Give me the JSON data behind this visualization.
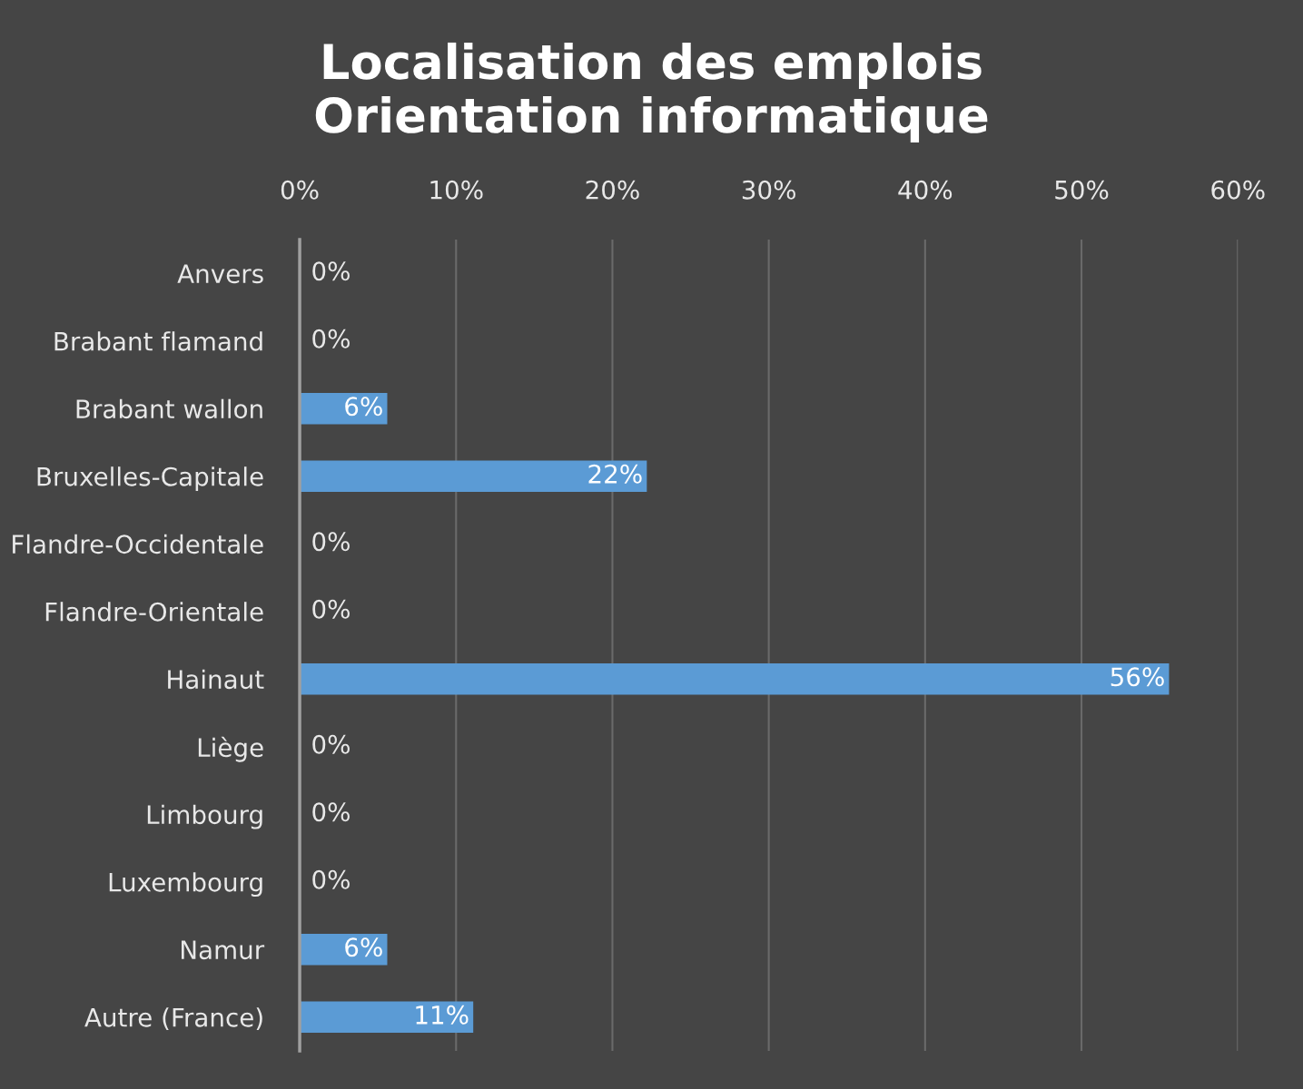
{
  "chart_data": {
    "type": "bar",
    "orientation": "horizontal",
    "title": "Localisation des emplois\nOrientation informatique",
    "categories": [
      "Anvers",
      "Brabant flamand",
      "Brabant wallon",
      "Bruxelles-Capitale",
      "Flandre-Occidentale",
      "Flandre-Orientale",
      "Hainaut",
      "Liège",
      "Limbourg",
      "Luxembourg",
      "Namur",
      "Autre (France)"
    ],
    "values": [
      0,
      0,
      5.6,
      22.2,
      0,
      0,
      55.6,
      0,
      0,
      0,
      5.6,
      11.1
    ],
    "value_labels": [
      "0%",
      "0%",
      "6%",
      "22%",
      "0%",
      "0%",
      "56%",
      "0%",
      "0%",
      "0%",
      "6%",
      "11%"
    ],
    "color": "#5b9bd5",
    "xlim": [
      0,
      60
    ],
    "xticks": [
      {
        "value": 0,
        "label": "0%"
      },
      {
        "value": 10,
        "label": "10%"
      },
      {
        "value": 20,
        "label": "20%"
      },
      {
        "value": 30,
        "label": "30%"
      },
      {
        "value": 40,
        "label": "40%"
      },
      {
        "value": 50,
        "label": "50%"
      },
      {
        "value": 60,
        "label": "60%"
      }
    ],
    "grid": "x",
    "legend": false
  }
}
